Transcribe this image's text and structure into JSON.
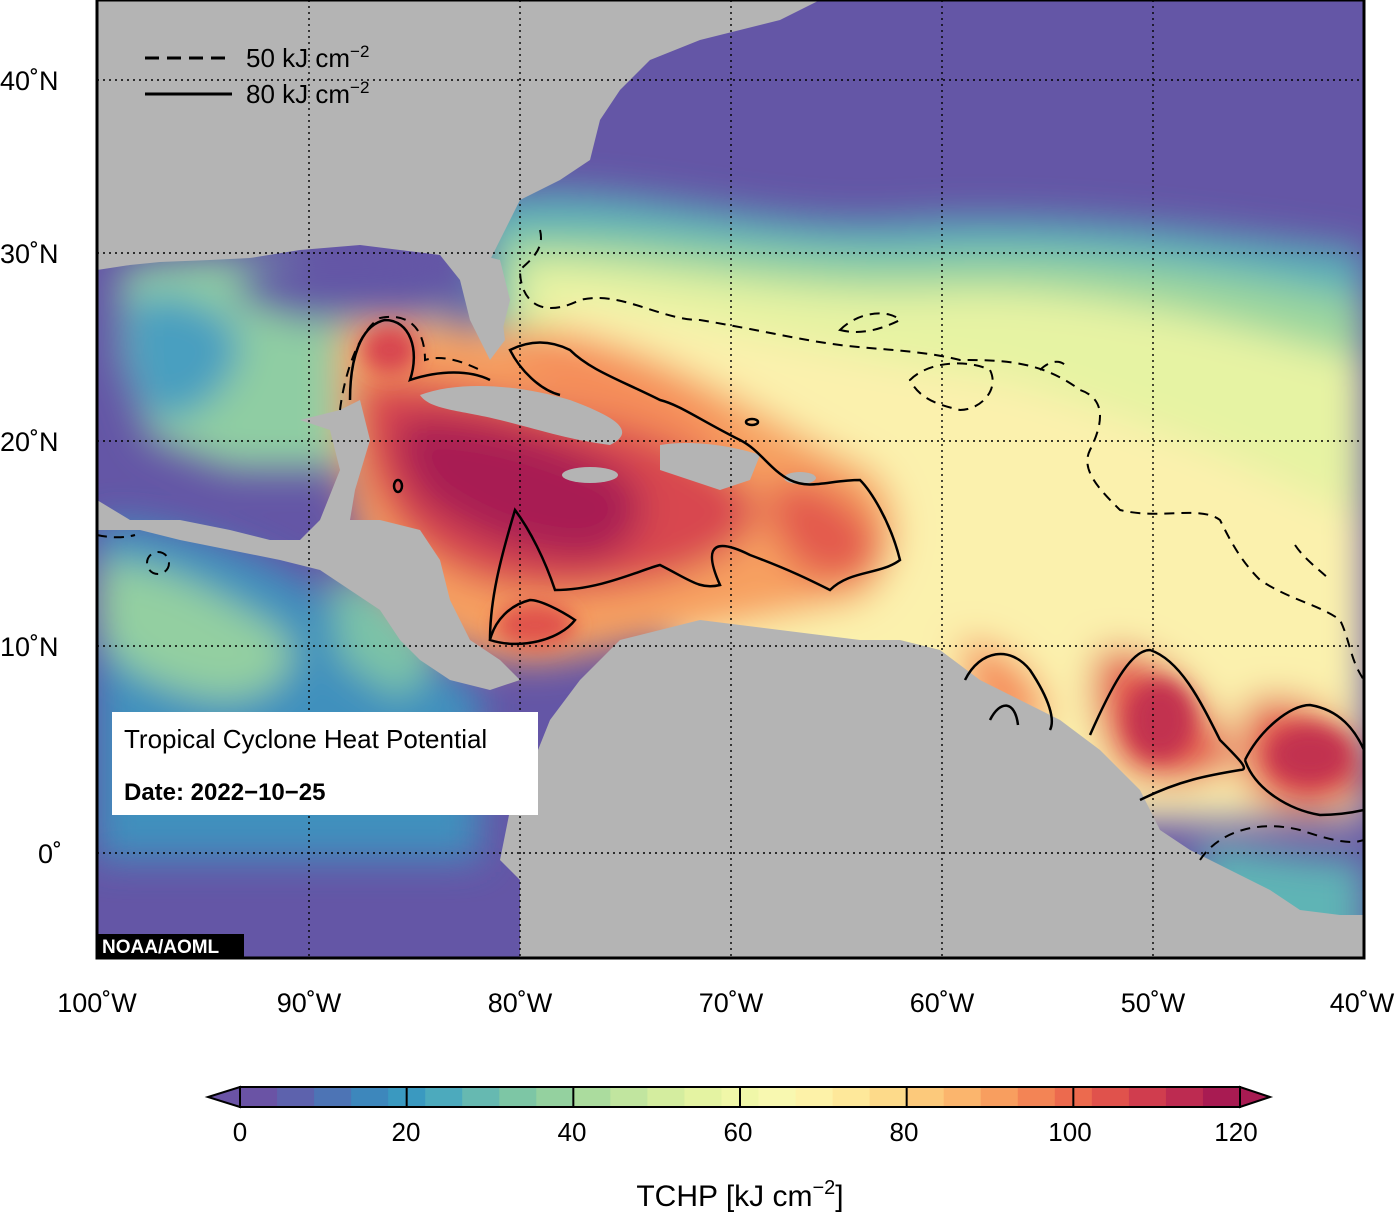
{
  "map": {
    "lat_labels": [
      "40˚N",
      "30˚N",
      "20˚N",
      "10˚N",
      "0˚"
    ],
    "lon_labels": [
      "100˚W",
      "90˚W",
      "80˚W",
      "70˚W",
      "60˚W",
      "50˚W",
      "40˚W"
    ],
    "extent": {
      "lon": [
        -100,
        -40
      ],
      "lat": [
        -5,
        45
      ]
    },
    "colors": {
      "ocean_cold": "#6456a6",
      "land": "#b4b4b4",
      "border": "#000000"
    }
  },
  "legend": {
    "dashed_value": "50 kJ cm",
    "solid_value": "80 kJ cm",
    "exponent": "−2"
  },
  "info_box": {
    "title": "Tropical Cyclone Heat Potential",
    "date": "Date: 2022−10−25"
  },
  "credit": "NOAA/AOML",
  "colorbar": {
    "ticks": [
      "0",
      "20",
      "40",
      "60",
      "80",
      "100",
      "120"
    ],
    "title": "TCHP [kJ cm",
    "title_exp": "−2",
    "title_close": "]",
    "colors": [
      "#6a53a5",
      "#5d62ad",
      "#4d74b5",
      "#3d87bc",
      "#3a99c0",
      "#4caabd",
      "#66b9b1",
      "#7dc6a5",
      "#94d19f",
      "#abdc9e",
      "#c1e59f",
      "#d4ed9f",
      "#e4f3a2",
      "#f0f7a8",
      "#f8f8b0",
      "#fdf2a8",
      "#fee89a",
      "#fdda8a",
      "#fcc97b",
      "#fbb56d",
      "#f89e5f",
      "#f38455",
      "#ec6a4e",
      "#e0524c",
      "#d03d4e",
      "#bd2b51",
      "#a81b52"
    ]
  }
}
